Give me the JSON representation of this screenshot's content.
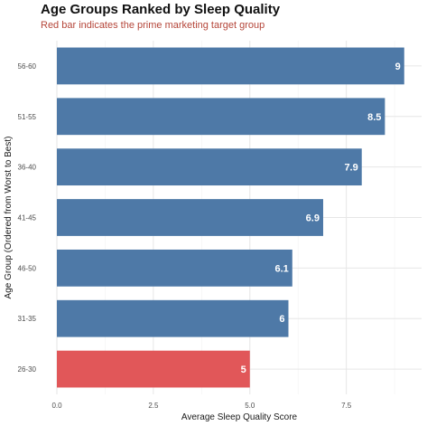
{
  "chart_data": {
    "type": "bar",
    "orientation": "horizontal",
    "title": "Age Groups Ranked by Sleep Quality",
    "subtitle": "Red bar indicates the prime marketing target group",
    "xlabel": "Average Sleep Quality Score",
    "ylabel": "Age Group (Ordered from Worst to Best)",
    "xlim": [
      0,
      9.45
    ],
    "x_ticks": [
      "0.0",
      "2.5",
      "5.0",
      "7.5"
    ],
    "x_tick_values": [
      0,
      2.5,
      5.0,
      7.5
    ],
    "grid": true,
    "categories": [
      "56-60",
      "51-55",
      "36-40",
      "41-45",
      "46-50",
      "31-35",
      "26-30"
    ],
    "values": [
      9,
      8.5,
      7.9,
      6.9,
      6.1,
      6,
      5
    ],
    "value_labels": [
      "9",
      "8.5",
      "7.9",
      "6.9",
      "6.1",
      "6",
      "5"
    ],
    "highlight_category": "26-30",
    "colors": {
      "default_bar": "#4e79a7",
      "highlight_bar": "#e15759"
    }
  }
}
